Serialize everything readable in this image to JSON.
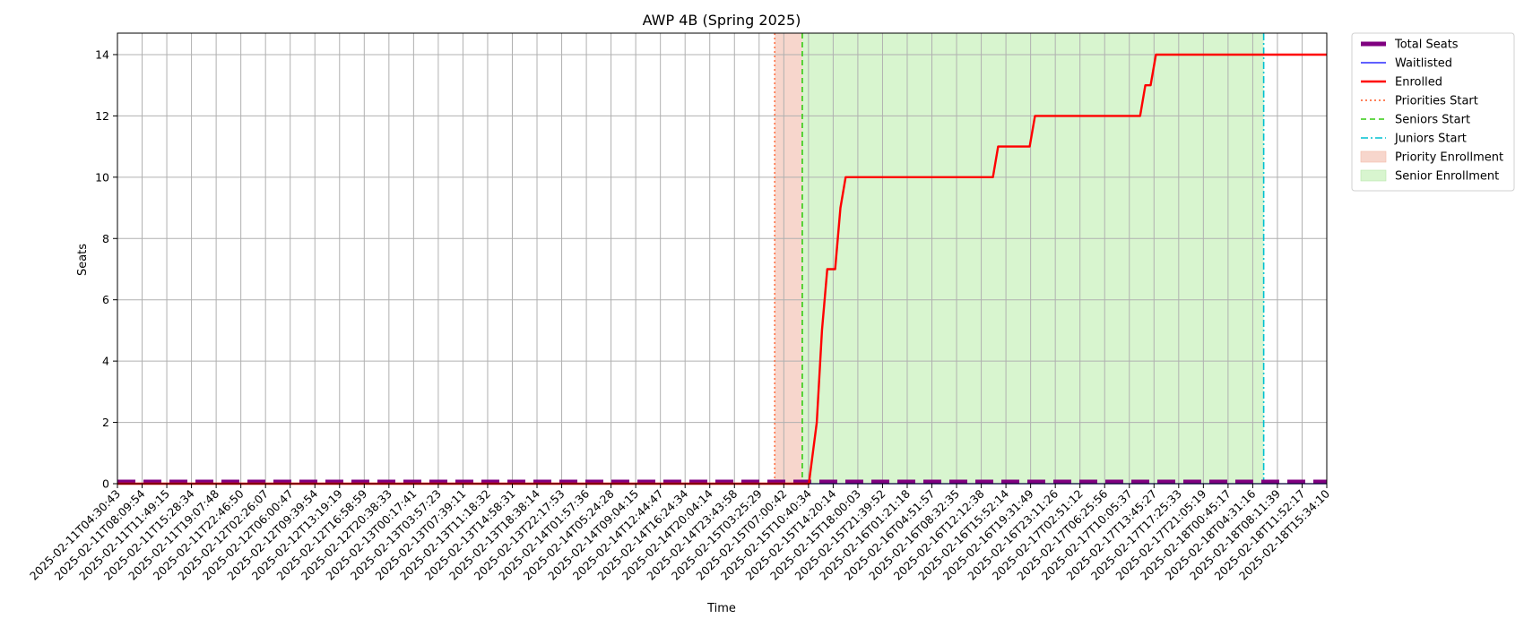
{
  "chart_data": {
    "type": "line",
    "title": "AWP 4B (Spring 2025)",
    "xlabel": "Time",
    "ylabel": "Seats",
    "ylim": [
      0,
      14.7
    ],
    "yticks": [
      0,
      2,
      4,
      6,
      8,
      10,
      12,
      14
    ],
    "grid": true,
    "legend_position": "outside-top-right",
    "x_categories": [
      "2025-02-11T04:30:43",
      "2025-02-11T08:09:54",
      "2025-02-11T11:49:15",
      "2025-02-11T15:28:34",
      "2025-02-11T19:07:48",
      "2025-02-11T22:46:50",
      "2025-02-12T02:26:07",
      "2025-02-12T06:00:47",
      "2025-02-12T09:39:54",
      "2025-02-12T13:19:19",
      "2025-02-12T16:58:59",
      "2025-02-12T20:38:33",
      "2025-02-13T00:17:41",
      "2025-02-13T03:57:23",
      "2025-02-13T07:39:11",
      "2025-02-13T11:18:32",
      "2025-02-13T14:58:31",
      "2025-02-13T18:38:14",
      "2025-02-13T22:17:53",
      "2025-02-14T01:57:36",
      "2025-02-14T05:24:28",
      "2025-02-14T09:04:15",
      "2025-02-14T12:44:47",
      "2025-02-14T16:24:34",
      "2025-02-14T20:04:14",
      "2025-02-14T23:43:58",
      "2025-02-15T03:25:29",
      "2025-02-15T07:00:42",
      "2025-02-15T10:40:34",
      "2025-02-15T14:20:14",
      "2025-02-15T18:00:03",
      "2025-02-15T21:39:52",
      "2025-02-16T01:21:18",
      "2025-02-16T04:51:57",
      "2025-02-16T08:32:35",
      "2025-02-16T12:12:38",
      "2025-02-16T15:52:14",
      "2025-02-16T19:31:49",
      "2025-02-16T23:11:26",
      "2025-02-17T02:51:12",
      "2025-02-17T06:25:56",
      "2025-02-17T10:05:37",
      "2025-02-17T13:45:27",
      "2025-02-17T17:25:33",
      "2025-02-17T21:05:19",
      "2025-02-18T00:45:17",
      "2025-02-18T04:31:16",
      "2025-02-18T08:11:39",
      "2025-02-18T11:52:17",
      "2025-02-18T15:34:10"
    ],
    "x_range": [
      0,
      46
    ],
    "series": [
      {
        "name": "Total Seats",
        "color": "#800080",
        "style": "dashed-thick",
        "points": [
          [
            0,
            0
          ],
          [
            46,
            0
          ]
        ]
      },
      {
        "name": "Waitlisted",
        "color": "#0000ff",
        "style": "solid-thin",
        "points": [
          [
            0,
            0
          ],
          [
            46,
            0
          ]
        ]
      },
      {
        "name": "Enrolled",
        "color": "#ff0000",
        "style": "solid-thick",
        "points": [
          [
            0,
            0
          ],
          [
            26.3,
            0
          ],
          [
            26.6,
            2
          ],
          [
            26.8,
            5
          ],
          [
            27.0,
            7
          ],
          [
            27.3,
            7
          ],
          [
            27.5,
            9
          ],
          [
            27.7,
            10
          ],
          [
            33.3,
            10
          ],
          [
            33.5,
            11
          ],
          [
            34.7,
            11
          ],
          [
            34.9,
            12
          ],
          [
            38.9,
            12
          ],
          [
            39.1,
            13
          ],
          [
            39.3,
            13
          ],
          [
            39.5,
            14
          ],
          [
            46,
            14
          ]
        ]
      }
    ],
    "vertical_lines": [
      {
        "name": "Priorities Start",
        "x": 25.0,
        "color": "#ff5722",
        "style": "dotted"
      },
      {
        "name": "Seniors Start",
        "x": 26.05,
        "color": "#33cc11",
        "style": "dashed"
      },
      {
        "name": "Juniors Start",
        "x": 43.6,
        "color": "#00c0d0",
        "style": "dashdot"
      }
    ],
    "shaded_regions": [
      {
        "name": "Priority Enrollment",
        "x0": 25.0,
        "x1": 26.05,
        "color": "#f7d6cc"
      },
      {
        "name": "Senior Enrollment",
        "x0": 26.05,
        "x1": 43.6,
        "color": "#d8f5cf"
      }
    ],
    "legend": [
      {
        "label": "Total Seats",
        "kind": "purple-bar"
      },
      {
        "label": "Waitlisted",
        "kind": "blue-line"
      },
      {
        "label": "Enrolled",
        "kind": "red-line"
      },
      {
        "label": "Priorities Start",
        "kind": "dotted"
      },
      {
        "label": "Seniors Start",
        "kind": "dashed"
      },
      {
        "label": "Juniors Start",
        "kind": "dashdot"
      },
      {
        "label": "Priority Enrollment",
        "kind": "patch-pink"
      },
      {
        "label": "Senior Enrollment",
        "kind": "patch-green"
      }
    ]
  }
}
